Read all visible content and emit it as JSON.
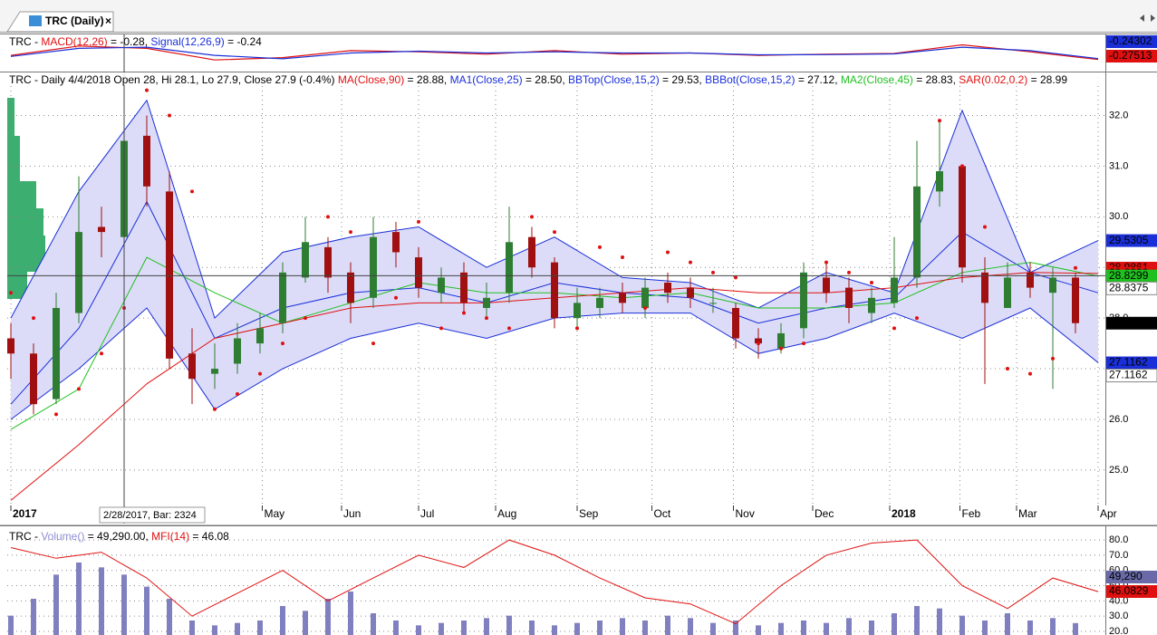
{
  "tab_title": "TRC (Daily)",
  "tab_close": "×",
  "tooltip": "2/28/2017, Bar: 2324",
  "chart_data": [
    {
      "type": "line",
      "pane": "macd",
      "header": [
        {
          "text": "TRC - ",
          "color": "#000"
        },
        {
          "text": "MACD(12,26)",
          "color": "#e01010"
        },
        {
          "text": " = -0.28, ",
          "color": "#000"
        },
        {
          "text": "Signal(12,26,9)",
          "color": "#1a2fd8"
        },
        {
          "text": " = -0.24",
          "color": "#000"
        }
      ],
      "xlim": [
        0,
        48
      ],
      "ylim": [
        -0.8,
        0.8
      ],
      "series": [
        {
          "color": "#e01010",
          "x": [
            0,
            3,
            6,
            9,
            12,
            15,
            18,
            21,
            24,
            27,
            30,
            33,
            36,
            39,
            42,
            45,
            48
          ],
          "values": [
            -0.1,
            0.3,
            0.2,
            -0.3,
            -0.2,
            0.1,
            0.05,
            -0.05,
            0.1,
            -0.05,
            0.0,
            -0.1,
            -0.05,
            -0.02,
            0.35,
            0.05,
            -0.28
          ]
        },
        {
          "color": "#1a2fd8",
          "x": [
            0,
            3,
            6,
            9,
            12,
            15,
            18,
            21,
            24,
            27,
            30,
            33,
            36,
            39,
            42,
            45,
            48
          ],
          "values": [
            -0.15,
            0.2,
            0.25,
            -0.1,
            -0.25,
            0.0,
            0.08,
            0.0,
            0.05,
            0.0,
            0.0,
            -0.08,
            -0.07,
            -0.04,
            0.25,
            0.1,
            -0.24
          ]
        }
      ],
      "right_labels": [
        {
          "value": -0.24302,
          "bg": "#1a2fd8",
          "fg": "#fff"
        },
        {
          "value": -0.27513,
          "bg": "#e01010",
          "fg": "#fff"
        }
      ]
    },
    {
      "type": "candlestick",
      "pane": "price",
      "header": [
        {
          "text": "TRC - Daily 4/4/2018 Open 28, Hi 28.1, Lo 27.9, Close 27.9 (-0.4%) ",
          "color": "#000"
        },
        {
          "text": "MA(Close,90)",
          "color": "#e01010"
        },
        {
          "text": " = 28.88, ",
          "color": "#000"
        },
        {
          "text": "MA1(Close,25)",
          "color": "#1a2fd8"
        },
        {
          "text": " = 28.50, ",
          "color": "#000"
        },
        {
          "text": "BBTop(Close,15,2)",
          "color": "#1a2fd8"
        },
        {
          "text": " = 29.53, ",
          "color": "#000"
        },
        {
          "text": "BBBot(Close,15,2)",
          "color": "#1a2fd8"
        },
        {
          "text": " = 27.12, ",
          "color": "#000"
        },
        {
          "text": "MA2(Close,45)",
          "color": "#20c020"
        },
        {
          "text": " = 28.83, ",
          "color": "#000"
        },
        {
          "text": "SAR(0.02,0.2)",
          "color": "#e01010"
        },
        {
          "text": " = 28.99",
          "color": "#000"
        }
      ],
      "xlim": [
        0,
        48
      ],
      "ylim": [
        24.3,
        32.85
      ],
      "yticks": [
        {
          "value": 25,
          "label": "25.0"
        },
        {
          "value": 26,
          "label": "26.0"
        },
        {
          "value": 27,
          "label": "27.0"
        },
        {
          "value": 28,
          "label": "28.0"
        },
        {
          "value": 29,
          "label": "29.0"
        },
        {
          "value": 30,
          "label": "30.0"
        },
        {
          "value": 31,
          "label": "31.0"
        },
        {
          "value": 32,
          "label": "32.0"
        }
      ],
      "xticks": [
        {
          "value": 0,
          "label": "2017"
        },
        {
          "value": 11.1,
          "label": "May"
        },
        {
          "value": 14.6,
          "label": "Jun"
        },
        {
          "value": 18.0,
          "label": "Jul"
        },
        {
          "value": 21.4,
          "label": "Aug"
        },
        {
          "value": 25.0,
          "label": "Sep"
        },
        {
          "value": 28.3,
          "label": "Oct"
        },
        {
          "value": 31.9,
          "label": "Nov"
        },
        {
          "value": 35.4,
          "label": "Dec"
        },
        {
          "value": 38.8,
          "label": "2018"
        },
        {
          "value": 41.9,
          "label": "Feb"
        },
        {
          "value": 44.4,
          "label": "Mar"
        },
        {
          "value": 48.0,
          "label": "Apr"
        }
      ],
      "up_color": "#2e7d32",
      "down_color": "#a01010",
      "band_fill": "#dcdcf8",
      "open": [
        27.6,
        27.3,
        26.4,
        28.1,
        29.8,
        29.6,
        31.6,
        30.5,
        27.3,
        26.9,
        27.1,
        27.5,
        27.9,
        28.8,
        29.4,
        28.9,
        28.4,
        29.7,
        29.2,
        28.5,
        28.9,
        28.2,
        28.5,
        29.6,
        29.1,
        28.0,
        28.2,
        28.5,
        28.2,
        28.7,
        28.6,
        28.3,
        28.2,
        27.6,
        27.4,
        27.8,
        28.8,
        28.6,
        28.1,
        28.3,
        28.8,
        30.5,
        31.0,
        28.9,
        28.2,
        28.9,
        28.5,
        28.8
      ],
      "high": [
        27.9,
        27.5,
        28.5,
        30.8,
        30.2,
        32.4,
        32.0,
        30.9,
        27.8,
        27.5,
        27.9,
        28.1,
        29.1,
        30.0,
        29.6,
        29.1,
        30.0,
        29.9,
        29.4,
        29.0,
        29.1,
        28.7,
        30.2,
        29.8,
        29.2,
        28.6,
        28.6,
        28.7,
        28.8,
        28.9,
        28.8,
        28.6,
        28.3,
        27.8,
        27.9,
        29.1,
        29.1,
        28.8,
        28.6,
        29.6,
        31.5,
        31.9,
        31.0,
        29.2,
        29.1,
        29.1,
        29.0,
        28.9
      ],
      "low": [
        26.8,
        26.1,
        26.3,
        27.9,
        29.2,
        29.4,
        30.2,
        27.0,
        26.3,
        26.6,
        26.9,
        27.3,
        27.7,
        28.7,
        28.5,
        27.9,
        28.2,
        29.0,
        28.4,
        28.3,
        28.1,
        28.0,
        28.3,
        28.8,
        27.8,
        27.8,
        28.0,
        28.1,
        28.0,
        28.3,
        28.2,
        28.1,
        27.4,
        27.2,
        27.3,
        27.6,
        28.3,
        27.9,
        27.9,
        28.2,
        28.6,
        30.2,
        28.7,
        26.7,
        28.2,
        28.4,
        26.6,
        27.7
      ],
      "close": [
        27.3,
        26.3,
        28.2,
        29.7,
        29.7,
        31.5,
        30.6,
        27.2,
        26.8,
        27.0,
        27.6,
        27.8,
        28.9,
        29.5,
        28.8,
        28.3,
        29.6,
        29.3,
        28.6,
        28.8,
        28.3,
        28.4,
        29.5,
        29.0,
        28.0,
        28.3,
        28.4,
        28.3,
        28.6,
        28.5,
        28.4,
        28.3,
        27.6,
        27.5,
        27.7,
        28.9,
        28.5,
        28.2,
        28.4,
        28.8,
        30.6,
        30.9,
        29.0,
        28.3,
        28.8,
        28.6,
        28.8,
        27.9
      ],
      "bands": {
        "x": [
          0,
          3,
          6,
          9,
          12,
          15,
          18,
          21,
          24,
          27,
          30,
          33,
          36,
          39,
          42,
          45,
          48
        ],
        "top": [
          28.0,
          30.5,
          32.3,
          28.0,
          29.3,
          29.6,
          29.8,
          29.0,
          29.6,
          28.8,
          28.7,
          28.2,
          28.9,
          28.5,
          32.1,
          28.9,
          29.53
        ],
        "bottom": [
          26.0,
          27.0,
          28.2,
          26.2,
          27.0,
          27.6,
          27.9,
          27.6,
          28.0,
          28.1,
          28.1,
          27.3,
          27.6,
          28.1,
          27.6,
          28.2,
          27.12
        ],
        "color": "#1a2fd8"
      },
      "lines": [
        {
          "color": "#1a2fd8",
          "x": [
            0,
            3,
            6,
            9,
            12,
            15,
            18,
            21,
            24,
            27,
            30,
            33,
            36,
            39,
            42,
            45,
            48
          ],
          "values": [
            26.3,
            27.8,
            30.3,
            27.6,
            28.2,
            28.5,
            28.6,
            28.3,
            28.7,
            28.5,
            28.4,
            27.9,
            28.2,
            28.4,
            29.7,
            28.9,
            28.5
          ]
        },
        {
          "color": "#20c020",
          "x": [
            0,
            3,
            6,
            9,
            12,
            15,
            18,
            21,
            24,
            27,
            30,
            33,
            36,
            39,
            42,
            45,
            48
          ],
          "values": [
            25.8,
            26.6,
            29.2,
            28.5,
            27.9,
            28.3,
            28.7,
            28.5,
            28.5,
            28.4,
            28.5,
            28.2,
            28.2,
            28.3,
            28.9,
            29.1,
            28.83
          ]
        },
        {
          "color": "#e01010",
          "x": [
            0,
            3,
            6,
            9,
            12,
            15,
            18,
            21,
            24,
            27,
            30,
            33,
            36,
            39,
            42,
            45,
            48
          ],
          "values": [
            24.4,
            25.5,
            26.7,
            27.6,
            27.9,
            28.2,
            28.3,
            28.3,
            28.4,
            28.5,
            28.6,
            28.5,
            28.5,
            28.6,
            28.8,
            28.9,
            28.88
          ]
        }
      ],
      "sar": {
        "color": "#e01010",
        "values": [
          28.5,
          28.0,
          26.1,
          26.6,
          27.3,
          28.2,
          32.5,
          32.0,
          30.5,
          26.2,
          26.5,
          26.9,
          27.5,
          28.0,
          30.0,
          29.7,
          27.5,
          28.4,
          29.9,
          27.8,
          28.1,
          28.0,
          27.8,
          30.0,
          29.7,
          27.8,
          29.4,
          29.2,
          28.2,
          29.3,
          29.1,
          28.9,
          28.8,
          27.5,
          27.4,
          27.5,
          29.1,
          28.9,
          28.7,
          27.8,
          28.0,
          31.9,
          31.0,
          29.8,
          27.0,
          26.9,
          27.2,
          28.99
        ]
      },
      "crosshair": {
        "x": 5.0,
        "y": 28.8375
      },
      "right_labels": [
        {
          "value": 29.5305,
          "bg": "#1a2fd8",
          "fg": "#fff"
        },
        {
          "value": 28.9861,
          "bg": "#e01010",
          "fg": "#fff"
        },
        {
          "value": 28.8839,
          "bg": "#e01010",
          "fg": "#fff"
        },
        {
          "value": 28.8299,
          "bg": "#20c020",
          "fg": "#fff"
        },
        {
          "value": 28.8375,
          "bg": "#fff",
          "fg": "#333",
          "box": true
        },
        {
          "value": 27.9,
          "bg": "#000",
          "fg": "#fff"
        },
        {
          "value": 27.1162,
          "bg": "#1a2fd8",
          "fg": "#fff"
        },
        {
          "value": 27.1162,
          "bg": "#fff",
          "fg": "#333",
          "box": true
        }
      ]
    },
    {
      "type": "bar",
      "pane": "volume",
      "header": [
        {
          "text": "TRC - ",
          "color": "#000"
        },
        {
          "text": "Volume()",
          "color": "#8f8fd8"
        },
        {
          "text": " = 49,290.00, ",
          "color": "#000"
        },
        {
          "text": "MFI(14)",
          "color": "#e01010"
        },
        {
          "text": " = 46.08",
          "color": "#000"
        }
      ],
      "xlim": [
        0,
        48
      ],
      "vlim": [
        0,
        450000
      ],
      "ylim": [
        17.6,
        89
      ],
      "yticks": [
        {
          "value": 20,
          "label": "20.0"
        },
        {
          "value": 30,
          "label": "30.0"
        },
        {
          "value": 40,
          "label": "40.0"
        },
        {
          "value": 50,
          "label": "50.0"
        },
        {
          "value": 60,
          "label": "60.0"
        },
        {
          "value": 70,
          "label": "70.0"
        },
        {
          "value": 80,
          "label": "80.0"
        }
      ],
      "volume_color": "#8080c0",
      "volume": [
        80000,
        150000,
        250000,
        300000,
        280000,
        250000,
        200000,
        150000,
        60000,
        40000,
        50000,
        60000,
        120000,
        100000,
        150000,
        180000,
        90000,
        60000,
        40000,
        50000,
        60000,
        70000,
        80000,
        60000,
        40000,
        50000,
        60000,
        70000,
        60000,
        80000,
        70000,
        50000,
        60000,
        40000,
        50000,
        60000,
        50000,
        70000,
        60000,
        90000,
        120000,
        110000,
        80000,
        60000,
        90000,
        60000,
        70000,
        49290
      ],
      "mfi": {
        "color": "#e01010",
        "x": [
          0,
          2,
          4,
          6,
          8,
          10,
          12,
          14,
          16,
          18,
          20,
          22,
          24,
          26,
          28,
          30,
          32,
          34,
          36,
          38,
          40,
          42,
          44,
          46,
          48
        ],
        "values": [
          75,
          68,
          72,
          55,
          30,
          45,
          60,
          40,
          55,
          70,
          62,
          80,
          70,
          55,
          42,
          38,
          25,
          50,
          70,
          78,
          80,
          50,
          35,
          55,
          46.08
        ]
      },
      "right_labels": [
        {
          "value": 49290,
          "label": "49,290",
          "bg": "#6a6aa8",
          "fg": "#fff"
        },
        {
          "value": 46.0829,
          "bg": "#e01010",
          "fg": "#fff"
        }
      ]
    }
  ]
}
